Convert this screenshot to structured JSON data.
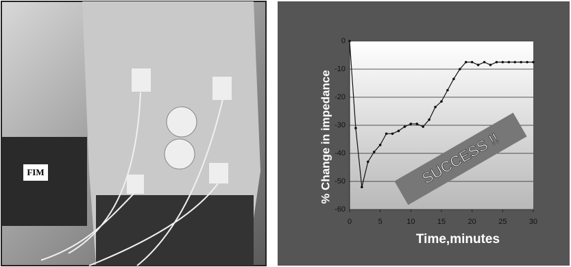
{
  "photo": {
    "labels": [
      "FIM"
    ]
  },
  "chart_data": {
    "type": "line",
    "x_label": "Time,minutes",
    "y_label": "% Change in impedance",
    "annotation": "SUCCESS !!",
    "x": [
      0,
      1,
      2,
      3,
      4,
      5,
      6,
      7,
      8,
      9,
      10,
      11,
      12,
      13,
      14,
      15,
      16,
      17,
      18,
      19,
      20,
      21,
      22,
      23,
      24,
      25,
      26,
      27,
      28,
      29,
      30
    ],
    "series": [
      {
        "color": "#111111",
        "values": [
          0,
          -31,
          -52,
          -43,
          -39.5,
          -37,
          -33,
          -33,
          -32,
          -30.5,
          -29.5,
          -29.5,
          -30.5,
          -28,
          -23.5,
          -21.5,
          -17.5,
          -13.5,
          -10,
          -7.5,
          -7.5,
          -8.5,
          -7.5,
          -8.5,
          -7.5,
          -7.5,
          -7.5,
          -7.5,
          -7.5,
          -7.5,
          -7.5
        ]
      }
    ],
    "xlim": [
      0,
      30
    ],
    "xticks": [
      0,
      5,
      10,
      15,
      20,
      25,
      30
    ],
    "ylim": [
      -60,
      0
    ],
    "yticks": [
      -60,
      -50,
      -40,
      -30,
      -20,
      -10,
      0
    ],
    "grid": true
  }
}
